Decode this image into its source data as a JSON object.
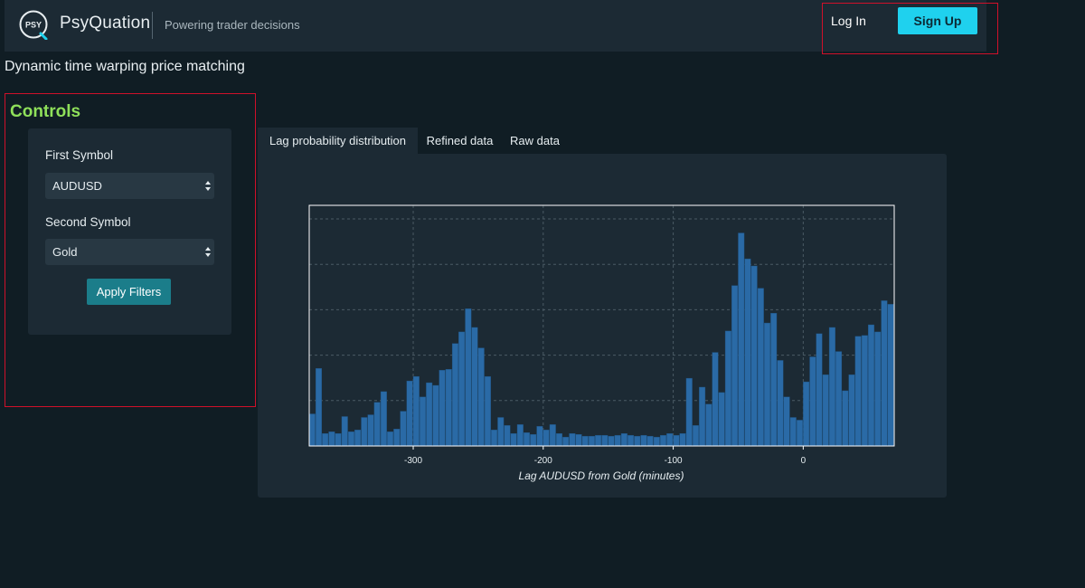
{
  "header": {
    "logo_text": "PSY",
    "brand": "PsyQuation",
    "tagline": "Powering trader decisions",
    "login_label": "Log In",
    "signup_label": "Sign Up"
  },
  "page": {
    "title": "Dynamic time warping price matching"
  },
  "controls": {
    "heading": "Controls",
    "first_symbol_label": "First Symbol",
    "first_symbol_value": "AUDUSD",
    "second_symbol_label": "Second Symbol",
    "second_symbol_value": "Gold",
    "apply_label": "Apply Filters"
  },
  "tabs": [
    {
      "label": "Lag probability distribution",
      "active": true
    },
    {
      "label": "Refined data",
      "active": false
    },
    {
      "label": "Raw data",
      "active": false
    }
  ],
  "colors": {
    "accent": "#1fd1ee",
    "heading_green": "#8fe05a",
    "bar_fill": "#2a6aa6",
    "highlight_border": "#d0102a"
  },
  "chart_data": {
    "type": "bar",
    "xlabel": "Lag AUDUSD from Gold (minutes)",
    "ylabel": "",
    "xlim": [
      -380,
      70
    ],
    "ylim": [
      0,
      27
    ],
    "x_ticks": [
      -300,
      -200,
      -100,
      0
    ],
    "grid": true,
    "bin_width": 5,
    "x": [
      -380,
      -375,
      -370,
      -365,
      -360,
      -355,
      -350,
      -345,
      -340,
      -335,
      -330,
      -325,
      -320,
      -315,
      -310,
      -305,
      -300,
      -295,
      -290,
      -285,
      -280,
      -275,
      -270,
      -265,
      -260,
      -255,
      -250,
      -245,
      -240,
      -235,
      -230,
      -225,
      -220,
      -215,
      -210,
      -205,
      -200,
      -195,
      -190,
      -185,
      -180,
      -175,
      -170,
      -165,
      -160,
      -155,
      -150,
      -145,
      -140,
      -135,
      -130,
      -125,
      -120,
      -115,
      -110,
      -105,
      -100,
      -95,
      -90,
      -85,
      -80,
      -75,
      -70,
      -65,
      -60,
      -55,
      -50,
      -45,
      -40,
      -35,
      -30,
      -25,
      -20,
      -15,
      -10,
      -5,
      0,
      5,
      10,
      15,
      20,
      25,
      30,
      35,
      40,
      45,
      50,
      55,
      60,
      65
    ],
    "values": [
      3.6,
      8.7,
      1.4,
      1.6,
      1.4,
      3.3,
      1.6,
      1.8,
      3.2,
      3.5,
      4.9,
      6.1,
      1.6,
      1.9,
      3.9,
      7.3,
      7.8,
      5.5,
      7.1,
      6.8,
      8.5,
      8.6,
      11.5,
      12.8,
      15.4,
      13.3,
      11.0,
      7.8,
      1.8,
      3.2,
      2.3,
      1.4,
      2.4,
      1.5,
      1.3,
      2.2,
      1.8,
      2.4,
      1.4,
      1.0,
      1.4,
      1.3,
      1.1,
      1.1,
      1.2,
      1.2,
      1.1,
      1.2,
      1.4,
      1.2,
      1.1,
      1.2,
      1.1,
      1.0,
      1.2,
      1.4,
      1.2,
      1.4,
      7.6,
      2.3,
      6.6,
      4.7,
      10.5,
      6.0,
      12.9,
      18.0,
      23.9,
      21.0,
      20.2,
      17.7,
      13.8,
      14.9,
      9.6,
      5.5,
      3.2,
      2.9,
      7.2,
      10.0,
      12.6,
      8.0,
      13.3,
      10.6,
      6.2,
      8.0,
      12.3,
      12.4,
      13.6,
      12.8,
      16.3,
      15.9
    ]
  }
}
